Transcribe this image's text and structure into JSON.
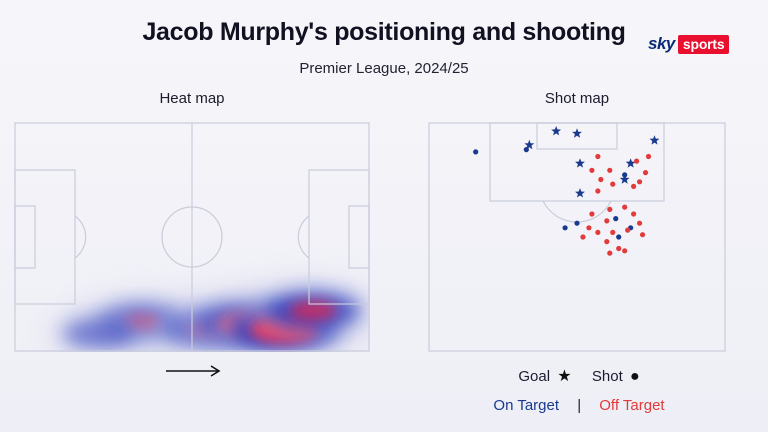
{
  "header": {
    "title": "Jacob Murphy's positioning and shooting",
    "subtitle": "Premier League, 2024/25"
  },
  "branding": {
    "sky": "sky",
    "sports": "sports"
  },
  "panels": {
    "heat_map_label": "Heat map",
    "shot_map_label": "Shot map"
  },
  "legend": {
    "goal_label": "Goal",
    "goal_symbol": "★",
    "shot_label": "Shot",
    "shot_symbol": "●",
    "on_target_label": "On Target",
    "separator": "|",
    "off_target_label": "Off Target"
  },
  "colors": {
    "on_target": "#1a3a8e",
    "off_target": "#e23b3b",
    "pitch_line": "#c9ccdb"
  },
  "chart_data": [
    {
      "type": "heatmap",
      "title": "Heat map",
      "attack_direction": "right",
      "hotspots": [
        {
          "x": 0.36,
          "y": 0.87,
          "intensity": 0.55
        },
        {
          "x": 0.55,
          "y": 0.9,
          "intensity": 0.6
        },
        {
          "x": 0.66,
          "y": 0.88,
          "intensity": 0.9
        },
        {
          "x": 0.76,
          "y": 0.9,
          "intensity": 1.0
        },
        {
          "x": 0.84,
          "y": 0.82,
          "intensity": 0.7
        },
        {
          "x": 0.24,
          "y": 0.92,
          "intensity": 0.25
        }
      ]
    },
    {
      "type": "scatter",
      "title": "Shot map",
      "shots": [
        {
          "x": 0.43,
          "y": 0.04,
          "kind": "goal",
          "target": "on"
        },
        {
          "x": 0.5,
          "y": 0.05,
          "kind": "goal",
          "target": "on"
        },
        {
          "x": 0.76,
          "y": 0.08,
          "kind": "goal",
          "target": "on"
        },
        {
          "x": 0.34,
          "y": 0.1,
          "kind": "goal",
          "target": "on"
        },
        {
          "x": 0.51,
          "y": 0.18,
          "kind": "goal",
          "target": "on"
        },
        {
          "x": 0.68,
          "y": 0.18,
          "kind": "goal",
          "target": "on"
        },
        {
          "x": 0.66,
          "y": 0.25,
          "kind": "goal",
          "target": "on"
        },
        {
          "x": 0.51,
          "y": 0.31,
          "kind": "goal",
          "target": "on"
        },
        {
          "x": 0.16,
          "y": 0.13,
          "kind": "shot",
          "target": "on"
        },
        {
          "x": 0.33,
          "y": 0.12,
          "kind": "shot",
          "target": "on"
        },
        {
          "x": 0.66,
          "y": 0.23,
          "kind": "shot",
          "target": "on"
        },
        {
          "x": 0.63,
          "y": 0.42,
          "kind": "shot",
          "target": "on"
        },
        {
          "x": 0.5,
          "y": 0.44,
          "kind": "shot",
          "target": "on"
        },
        {
          "x": 0.68,
          "y": 0.46,
          "kind": "shot",
          "target": "on"
        },
        {
          "x": 0.64,
          "y": 0.5,
          "kind": "shot",
          "target": "on"
        },
        {
          "x": 0.46,
          "y": 0.46,
          "kind": "shot",
          "target": "on"
        },
        {
          "x": 0.57,
          "y": 0.15,
          "kind": "shot",
          "target": "off"
        },
        {
          "x": 0.74,
          "y": 0.15,
          "kind": "shot",
          "target": "off"
        },
        {
          "x": 0.7,
          "y": 0.17,
          "kind": "shot",
          "target": "off"
        },
        {
          "x": 0.55,
          "y": 0.21,
          "kind": "shot",
          "target": "off"
        },
        {
          "x": 0.61,
          "y": 0.21,
          "kind": "shot",
          "target": "off"
        },
        {
          "x": 0.73,
          "y": 0.22,
          "kind": "shot",
          "target": "off"
        },
        {
          "x": 0.58,
          "y": 0.25,
          "kind": "shot",
          "target": "off"
        },
        {
          "x": 0.71,
          "y": 0.26,
          "kind": "shot",
          "target": "off"
        },
        {
          "x": 0.62,
          "y": 0.27,
          "kind": "shot",
          "target": "off"
        },
        {
          "x": 0.69,
          "y": 0.28,
          "kind": "shot",
          "target": "off"
        },
        {
          "x": 0.57,
          "y": 0.3,
          "kind": "shot",
          "target": "off"
        },
        {
          "x": 0.66,
          "y": 0.37,
          "kind": "shot",
          "target": "off"
        },
        {
          "x": 0.61,
          "y": 0.38,
          "kind": "shot",
          "target": "off"
        },
        {
          "x": 0.55,
          "y": 0.4,
          "kind": "shot",
          "target": "off"
        },
        {
          "x": 0.69,
          "y": 0.4,
          "kind": "shot",
          "target": "off"
        },
        {
          "x": 0.6,
          "y": 0.43,
          "kind": "shot",
          "target": "off"
        },
        {
          "x": 0.71,
          "y": 0.44,
          "kind": "shot",
          "target": "off"
        },
        {
          "x": 0.54,
          "y": 0.46,
          "kind": "shot",
          "target": "off"
        },
        {
          "x": 0.57,
          "y": 0.48,
          "kind": "shot",
          "target": "off"
        },
        {
          "x": 0.62,
          "y": 0.48,
          "kind": "shot",
          "target": "off"
        },
        {
          "x": 0.67,
          "y": 0.47,
          "kind": "shot",
          "target": "off"
        },
        {
          "x": 0.52,
          "y": 0.5,
          "kind": "shot",
          "target": "off"
        },
        {
          "x": 0.6,
          "y": 0.52,
          "kind": "shot",
          "target": "off"
        },
        {
          "x": 0.72,
          "y": 0.49,
          "kind": "shot",
          "target": "off"
        },
        {
          "x": 0.64,
          "y": 0.55,
          "kind": "shot",
          "target": "off"
        },
        {
          "x": 0.61,
          "y": 0.57,
          "kind": "shot",
          "target": "off"
        },
        {
          "x": 0.66,
          "y": 0.56,
          "kind": "shot",
          "target": "off"
        }
      ]
    }
  ]
}
